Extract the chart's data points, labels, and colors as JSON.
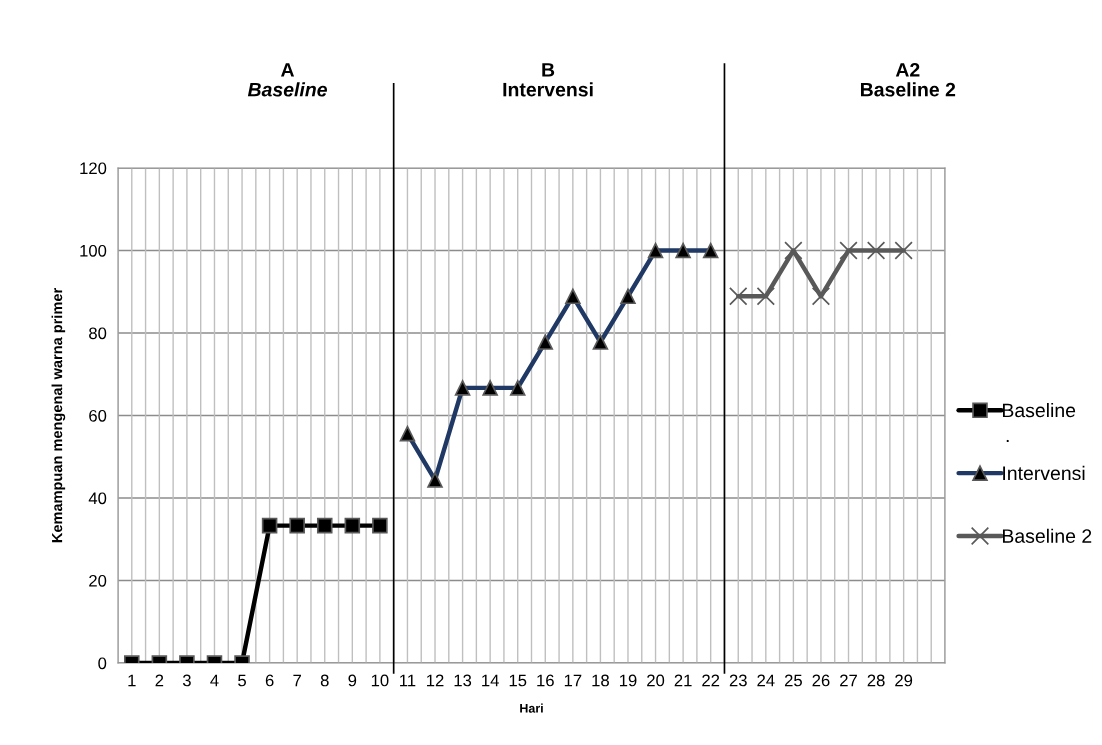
{
  "chart_data": {
    "type": "line",
    "xlabel": "Hari",
    "ylabel": "Kemampuan mengenal warna primer",
    "xlim": [
      0.5,
      30.5
    ],
    "xticks": [
      1,
      2,
      3,
      4,
      5,
      6,
      7,
      8,
      9,
      10,
      11,
      12,
      13,
      14,
      15,
      16,
      17,
      18,
      19,
      20,
      21,
      22,
      23,
      24,
      25,
      26,
      27,
      28,
      29
    ],
    "ylim": [
      0,
      120
    ],
    "yticks": [
      0,
      20,
      40,
      60,
      80,
      100,
      120
    ],
    "grid": true,
    "legend": "right",
    "line_style": "solid",
    "series": [
      {
        "name": "Baseline",
        "color": "#000000",
        "marker": "square",
        "x": [
          1,
          2,
          3,
          4,
          5,
          6,
          7,
          8,
          9,
          10
        ],
        "values": [
          0,
          0,
          0,
          0,
          0,
          33.3,
          33.3,
          33.3,
          33.3,
          33.3
        ]
      },
      {
        "name": "Intervensi",
        "color": "#1f3864",
        "marker": "triangle",
        "x": [
          11,
          12,
          13,
          14,
          15,
          16,
          17,
          18,
          19,
          20,
          21,
          22
        ],
        "values": [
          55.6,
          44.4,
          66.7,
          66.7,
          66.7,
          77.8,
          88.9,
          77.8,
          88.9,
          100,
          100,
          100
        ]
      },
      {
        "name": "Baseline 2",
        "color": "#595959",
        "marker": "cross",
        "x": [
          23,
          24,
          25,
          26,
          27,
          28,
          29
        ],
        "values": [
          88.9,
          88.9,
          100,
          88.9,
          100,
          100,
          100
        ]
      }
    ],
    "ref_lines": [
      {
        "axis": "x",
        "value": 10.5,
        "color": "#000000"
      },
      {
        "axis": "x",
        "value": 22.5,
        "color": "#000000"
      }
    ],
    "annotations": [
      "A",
      "Baseline",
      "B",
      "Intervensi",
      "A2",
      "Baseline 2",
      "."
    ]
  }
}
